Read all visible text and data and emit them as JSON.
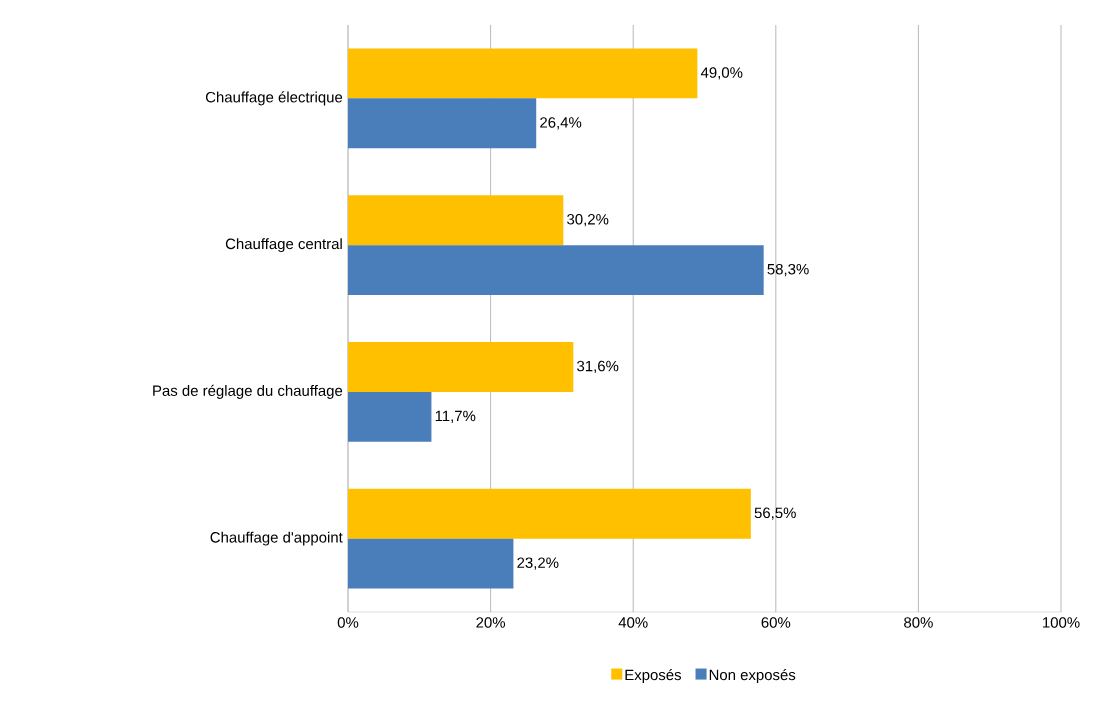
{
  "chart_data": {
    "type": "bar",
    "orientation": "horizontal",
    "categories": [
      "Chauffage électrique",
      "Chauffage central",
      "Pas de réglage du chauffage",
      "Chauffage d'appoint"
    ],
    "series": [
      {
        "name": "Exposés",
        "color": "#ffc000",
        "values": [
          49.0,
          30.2,
          31.6,
          56.5
        ],
        "value_labels": [
          "49,0%",
          "30,2%",
          "31,6%",
          "56,5%"
        ]
      },
      {
        "name": "Non exposés",
        "color": "#4a7ebb",
        "values": [
          26.4,
          58.3,
          11.7,
          23.2
        ],
        "value_labels": [
          "26,4%",
          "58,3%",
          "11,7%",
          "23,2%"
        ]
      }
    ],
    "xlim": [
      0,
      100
    ],
    "xticks": [
      {
        "value": 0,
        "label": "0%"
      },
      {
        "value": 20,
        "label": "20%"
      },
      {
        "value": 40,
        "label": "40%"
      },
      {
        "value": 60,
        "label": "60%"
      },
      {
        "value": 80,
        "label": "80%"
      },
      {
        "value": 100,
        "label": "100%"
      }
    ],
    "grid": "x",
    "legend": "bottom"
  }
}
